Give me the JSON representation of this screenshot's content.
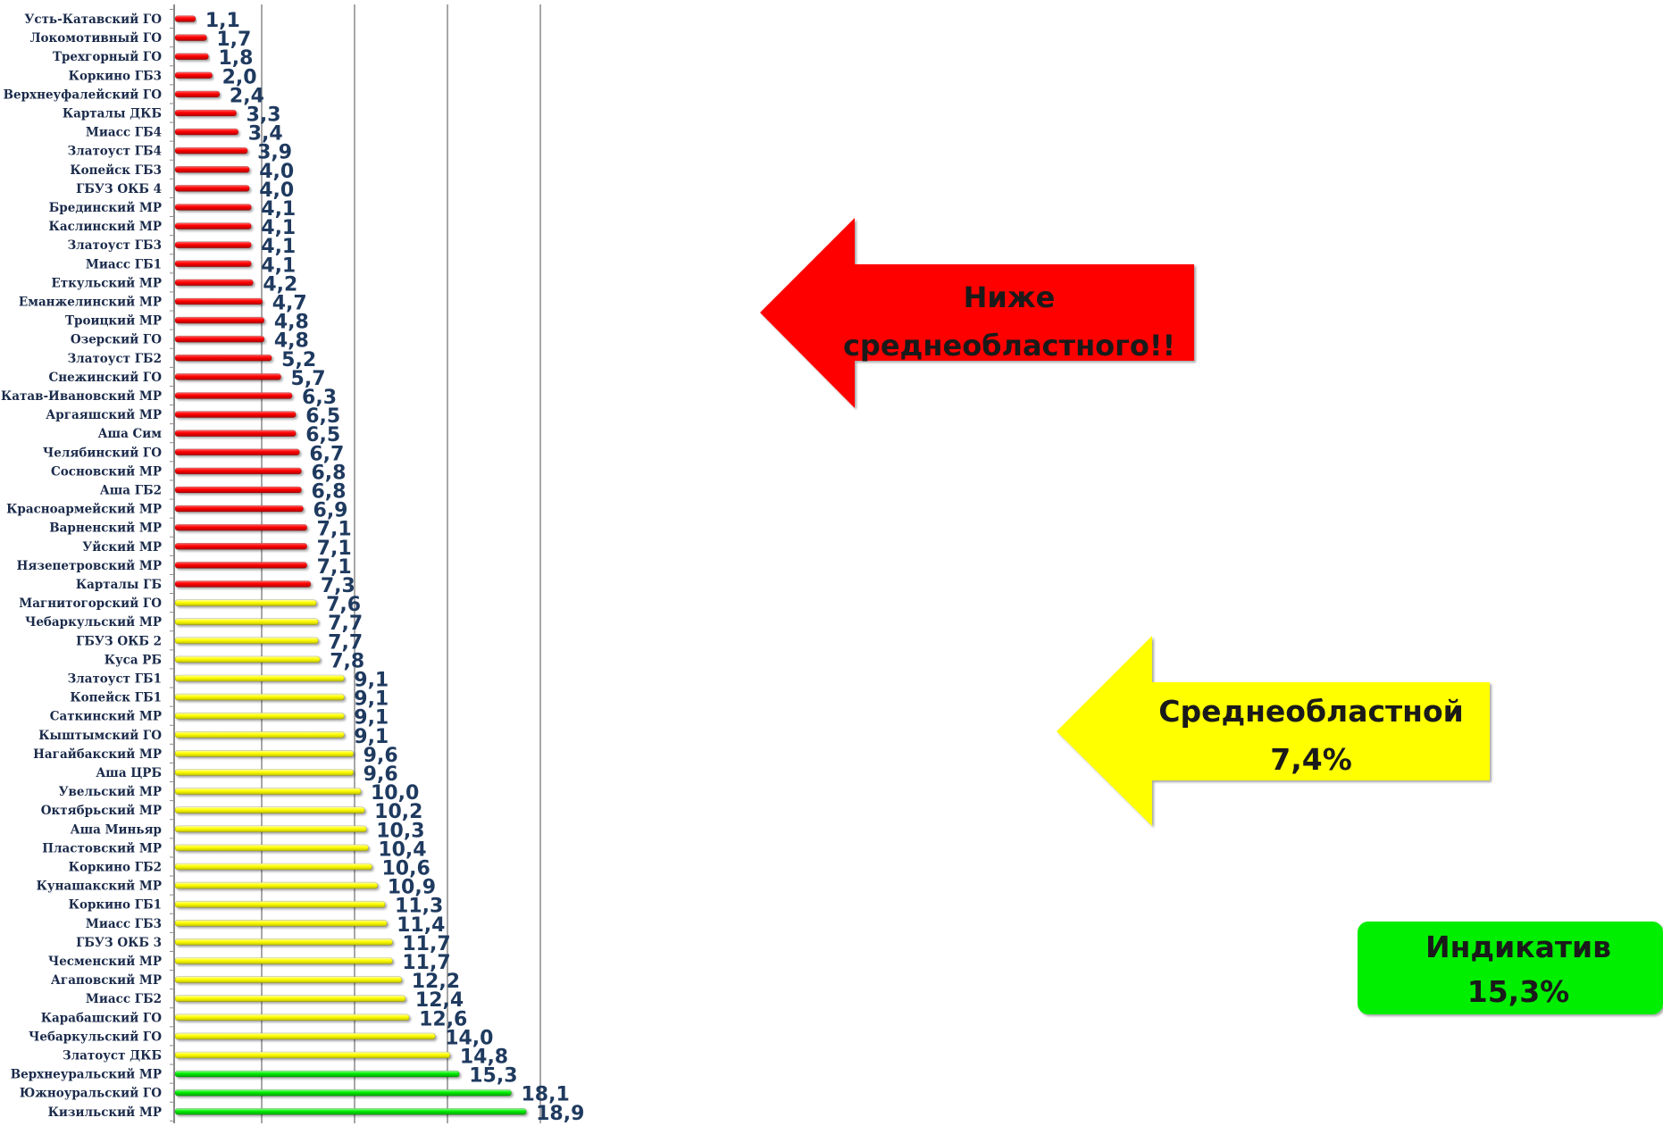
{
  "chart_data": {
    "type": "bar",
    "orientation": "horizontal",
    "grid": true,
    "xlim": [
      0,
      20
    ],
    "categories": [
      "Усть-Катавский ГО",
      "Локомотивный ГО",
      "Трехгорный ГО",
      "Коркино ГБ3",
      "Верхнеуфалейский ГО",
      "Карталы ДКБ",
      "Миасс ГБ4",
      "Златоуст ГБ4",
      "Копейск ГБ3",
      "ГБУЗ ОКБ 4",
      "Брединский МР",
      "Каслинский МР",
      "Златоуст  ГБ3",
      "Миасс ГБ1",
      "Еткульский МР",
      "Еманжелинский МР",
      "Троицкий МР",
      "Озерский ГО",
      "Златоуст ГБ2",
      "Снежинский ГО",
      "Катав-Ивановский МР",
      "Аргаяшский МР",
      "Аша Сим",
      "Челябинский ГО",
      "Сосновский МР",
      "Аша ГБ2",
      "Красноармейский МР",
      "Варненский МР",
      "Уйский МР",
      "Нязепетровский МР",
      "Карталы ГБ",
      "Магнитогорский ГО",
      "Чебаркульский МР",
      "ГБУЗ ОКБ 2",
      "Куса РБ",
      "Златоуст  ГБ1",
      "Копейск ГБ1",
      "Саткинский МР",
      "Кыштымский ГО",
      "Нагайбакский МР",
      "Аша ЦРБ",
      "Увельский МР",
      "Октябрьский МР",
      "Аша Миньяр",
      "Пластовский МР",
      "Коркино ГБ2",
      "Кунашакский МР",
      "Коркино ГБ1",
      "Миасс ГБ3",
      "ГБУЗ ОКБ 3",
      "Чесменский МР",
      "Агаповский МР",
      "Миасс ГБ2",
      "Карабашский ГО",
      "Чебаркульский ГО",
      "Златоуст ДКБ",
      "Верхнеуральский МР",
      "Южноуральский ГО",
      "Кизильский МР"
    ],
    "values": [
      1.1,
      1.7,
      1.8,
      2.0,
      2.4,
      3.3,
      3.4,
      3.9,
      4.0,
      4.0,
      4.1,
      4.1,
      4.1,
      4.1,
      4.2,
      4.7,
      4.8,
      4.8,
      5.2,
      5.7,
      6.3,
      6.5,
      6.5,
      6.7,
      6.8,
      6.8,
      6.9,
      7.1,
      7.1,
      7.1,
      7.3,
      7.6,
      7.7,
      7.7,
      7.8,
      9.1,
      9.1,
      9.1,
      9.1,
      9.6,
      9.6,
      10.0,
      10.2,
      10.3,
      10.4,
      10.6,
      10.9,
      11.3,
      11.4,
      11.7,
      11.7,
      12.2,
      12.4,
      12.6,
      14.0,
      14.8,
      15.3,
      18.1,
      18.9
    ],
    "value_labels": [
      "1,1",
      "1,7",
      "1,8",
      "2,0",
      "2,4",
      "3,3",
      "3,4",
      "3,9",
      "4,0",
      "4,0",
      "4,1",
      "4,1",
      "4,1",
      "4,1",
      "4,2",
      "4,7",
      "4,8",
      "4,8",
      "5,2",
      "5,7",
      "6,3",
      "6,5",
      "6,5",
      "6,7",
      "6,8",
      "6,8",
      "6,9",
      "7,1",
      "7,1",
      "7,1",
      "7,3",
      "7,6",
      "7,7",
      "7,7",
      "7,8",
      "9,1",
      "9,1",
      "9,1",
      "9,1",
      "9,6",
      "9,6",
      "10,0",
      "10,2",
      "10,3",
      "10,4",
      "10,6",
      "10,9",
      "11,3",
      "11,4",
      "11,7",
      "11,7",
      "12,2",
      "12,4",
      "12,6",
      "14,0",
      "14,8",
      "15,3",
      "18,1",
      "18,9"
    ],
    "bar_groups": [
      {
        "from_index": 0,
        "to_index": 30,
        "color": "#ff0000"
      },
      {
        "from_index": 31,
        "to_index": 55,
        "color": "#ffff00"
      },
      {
        "from_index": 56,
        "to_index": 58,
        "color": "#00ee00"
      }
    ]
  },
  "callouts": {
    "below": {
      "line1": "Ниже",
      "line2": "среднеобластного!!",
      "color": "#ff0000"
    },
    "average": {
      "line1": "Среднеобластной",
      "line2": "7,4%",
      "color": "#ffff00"
    },
    "indicative": {
      "line1": "Индикатив",
      "line2": "15,3%",
      "color": "#00ee00"
    }
  }
}
